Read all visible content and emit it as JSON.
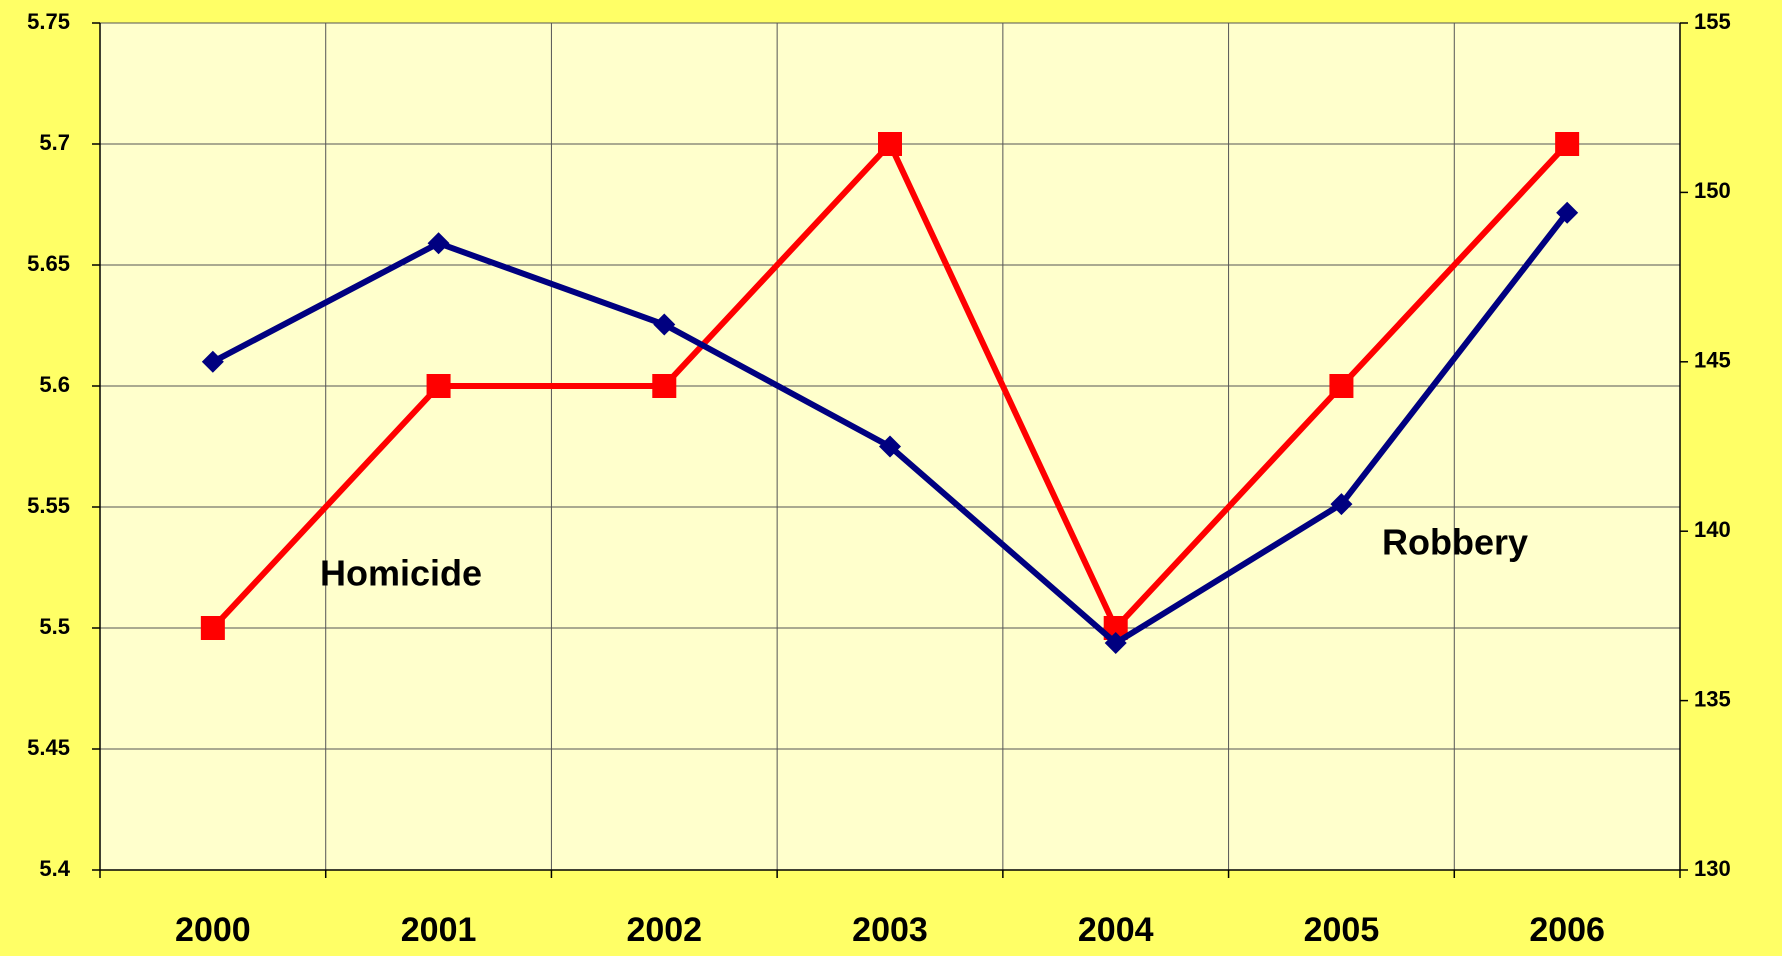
{
  "chart_data": {
    "type": "line",
    "categories": [
      "2000",
      "2001",
      "2002",
      "2003",
      "2004",
      "2005",
      "2006"
    ],
    "series": [
      {
        "name": "Homicide",
        "color": "#ff0000",
        "marker": "square",
        "values": [
          5.5,
          5.6,
          5.6,
          5.7,
          5.5,
          5.6,
          5.7
        ]
      },
      {
        "name": "Robbery",
        "color": "#000080",
        "marker": "diamond",
        "axis": "y2",
        "values": [
          145.0,
          148.5,
          146.1,
          142.5,
          136.7,
          140.8,
          149.4
        ]
      }
    ],
    "annotations": [
      "Homicide",
      "Robbery"
    ],
    "ylim": [
      5.4,
      5.75
    ],
    "yticks": [
      5.4,
      5.45,
      5.5,
      5.55,
      5.6,
      5.65,
      5.7,
      5.75
    ],
    "y2lim": [
      130,
      155
    ],
    "y2ticks": [
      130,
      135,
      140,
      145,
      150,
      155
    ],
    "grid": true
  }
}
